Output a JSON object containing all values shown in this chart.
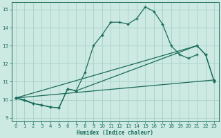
{
  "xlabel": "Humidex (Indice chaleur)",
  "bg_color": "#cce9e2",
  "grid_color": "#aed4cc",
  "line_color": "#1a6b5a",
  "xlim": [
    -0.5,
    23.5
  ],
  "ylim": [
    8.8,
    15.4
  ],
  "xticks": [
    0,
    1,
    2,
    3,
    4,
    5,
    6,
    7,
    8,
    9,
    10,
    11,
    12,
    13,
    14,
    15,
    16,
    17,
    18,
    19,
    20,
    21,
    22,
    23
  ],
  "yticks": [
    9,
    10,
    11,
    12,
    13,
    14,
    15
  ],
  "line1_x": [
    0,
    1,
    2,
    3,
    4,
    5,
    6,
    7,
    8,
    9,
    10,
    11,
    12,
    13,
    14,
    15,
    16,
    17,
    18,
    19,
    20,
    21
  ],
  "line1_y": [
    10.1,
    10.0,
    9.8,
    9.7,
    9.6,
    9.55,
    10.6,
    10.5,
    11.5,
    13.0,
    13.6,
    14.3,
    14.3,
    14.2,
    14.5,
    15.15,
    14.9,
    14.2,
    13.0,
    12.5,
    12.3,
    12.5
  ],
  "line2_x": [
    0,
    2,
    3,
    4,
    5,
    6,
    7,
    21,
    22,
    23
  ],
  "line2_y": [
    10.1,
    9.8,
    9.7,
    9.6,
    9.55,
    10.6,
    10.5,
    13.0,
    12.5,
    11.0
  ],
  "line3_x": [
    0,
    21,
    22,
    23
  ],
  "line3_y": [
    10.1,
    13.0,
    12.5,
    11.0
  ],
  "line4_x": [
    0,
    23
  ],
  "line4_y": [
    10.1,
    11.1
  ]
}
